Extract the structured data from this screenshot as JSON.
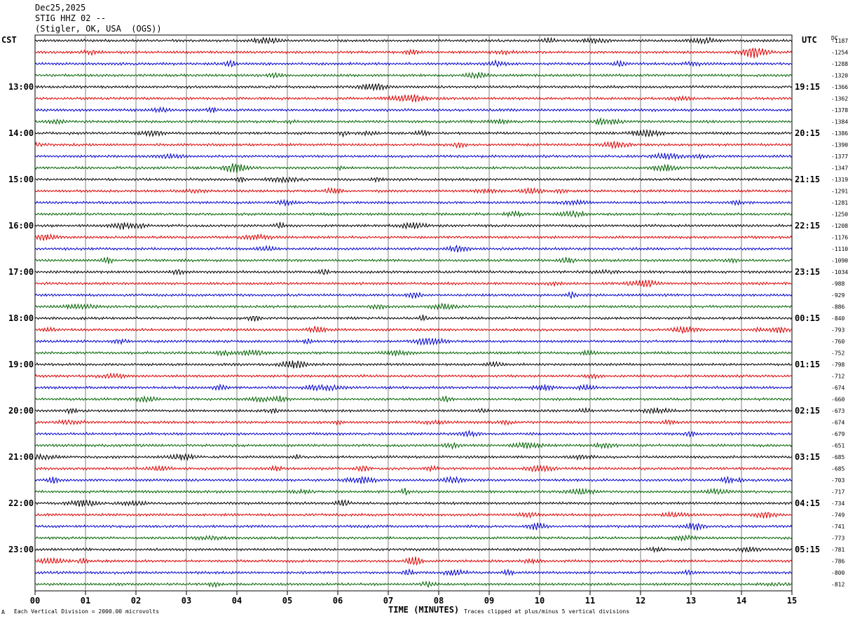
{
  "header": {
    "date": "Dec25,2025",
    "station": "STIG HHZ 02 --",
    "location": "(Stigler, OK, USA  (OGS))"
  },
  "left_label": "CST",
  "right_label": "UTC",
  "dc_label": "DC",
  "chart_data": {
    "type": "line",
    "title": "",
    "xlabel": "TIME (MINUTES)",
    "ylabel": "",
    "xlim": [
      0,
      15
    ],
    "x_ticks": [
      "00",
      "01",
      "02",
      "03",
      "04",
      "05",
      "06",
      "07",
      "08",
      "09",
      "10",
      "11",
      "12",
      "13",
      "14",
      "15"
    ],
    "rows": 48,
    "row_interval_minutes": 15,
    "trace_colors": [
      "#000000",
      "#e00000",
      "#0000d0",
      "#006400"
    ],
    "left_hour_labels": [
      "13:00",
      "14:00",
      "15:00",
      "16:00",
      "17:00",
      "18:00",
      "19:00",
      "20:00",
      "21:00",
      "22:00",
      "23:00"
    ],
    "right_hour_labels": [
      "19:15",
      "20:15",
      "21:15",
      "22:15",
      "23:15",
      "00:15",
      "01:15",
      "02:15",
      "03:15",
      "04:15",
      "05:15"
    ],
    "dc_offsets": [
      -1187,
      -1254,
      -1288,
      -1320,
      -1366,
      -1362,
      -1378,
      -1384,
      -1386,
      -1390,
      -1377,
      -1347,
      -1319,
      -1291,
      -1281,
      -1250,
      -1208,
      -1176,
      -1110,
      -1090,
      -1034,
      -988,
      -929,
      -886,
      -840,
      -793,
      -760,
      -752,
      -798,
      -712,
      -674,
      -660,
      -673,
      -674,
      -679,
      -651,
      -685,
      -685,
      -703,
      -717,
      -734,
      -749,
      -741,
      -773,
      -781,
      -786,
      -800,
      -812
    ]
  },
  "footer": {
    "scale": "Each Vertical Division = 2000.00 microvolts",
    "clip_note": "Traces clipped at plus/minus 5 vertical divisions",
    "corner_mark": "A"
  }
}
